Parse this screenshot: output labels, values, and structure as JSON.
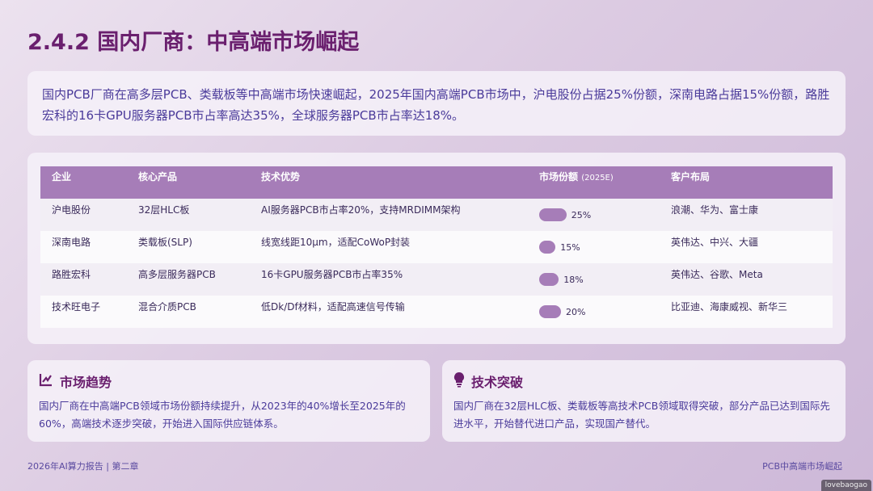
{
  "title": "2.4.2 国内厂商：中高端市场崛起",
  "intro": "国内PCB厂商在高多层PCB、类载板等中高端市场快速崛起，2025年国内高端PCB市场中，沪电股份占据25%份额，深南电路占据15%份额，路胜宏科的16卡GPU服务器PCB市占率高达35%，全球服务器PCB市占率达18%。",
  "table": {
    "headers": [
      "企业",
      "核心产品",
      "技术优势",
      "市场份额",
      "客户布局"
    ],
    "share_suffix": "(2025E)",
    "rows": [
      {
        "company": "沪电股份",
        "product": "32层HLC板",
        "tech": "AI服务器PCB市占率20%，支持MRDIMM架构",
        "share": 25,
        "share_label": "25%",
        "clients": "浪潮、华为、富士康"
      },
      {
        "company": "深南电路",
        "product": "类载板(SLP)",
        "tech": "线宽线距10μm，适配CoWoP封装",
        "share": 15,
        "share_label": "15%",
        "clients": "英伟达、中兴、大疆"
      },
      {
        "company": "路胜宏科",
        "product": "高多层服务器PCB",
        "tech": "16卡GPU服务器PCB市占率35%",
        "share": 18,
        "share_label": "18%",
        "clients": "英伟达、谷歌、Meta"
      },
      {
        "company": "技术旺电子",
        "product": "混合介质PCB",
        "tech": "低Dk/Df材料，适配高速信号传输",
        "share": 20,
        "share_label": "20%",
        "clients": "比亚迪、海康威视、新华三"
      }
    ]
  },
  "trend": {
    "icon": "line-chart-icon",
    "title": "市场趋势",
    "text": "国内厂商在中高端PCB领域市场份额持续提升，从2023年的40%增长至2025年的60%，高端技术逐步突破，开始进入国际供应链体系。"
  },
  "breakthrough": {
    "icon": "lightbulb-icon",
    "title": "技术突破",
    "text": "国内厂商在32层HLC板、类载板等高技术PCB领域取得突破，部分产品已达到国际先进水平，开始替代进口产品，实现国产替代。"
  },
  "footer": {
    "left": "2026年AI算力报告 | 第二章",
    "right": "PCB中高端市场崛起"
  },
  "watermark": "lovebaogao"
}
